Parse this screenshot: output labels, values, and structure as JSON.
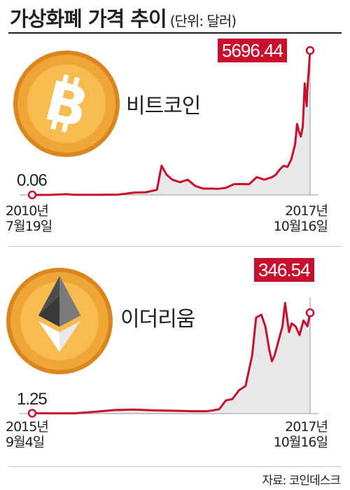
{
  "header": {
    "title": "가상화폐 가격 추이",
    "unit": "(단위: 달러)"
  },
  "source": "자료: 코인데스크",
  "colors": {
    "line": "#c8102e",
    "area": "#e8e8ea",
    "badge": "#c8102e",
    "coin_gold": "#e8962a",
    "coin_light": "#f6b94b"
  },
  "chart_data": [
    {
      "type": "area",
      "name": "비트코인",
      "icon": "bitcoin-icon",
      "start": {
        "value_label": "0.06",
        "date_year": "2010년",
        "date_md": "7월19일"
      },
      "end": {
        "value_label": "5696.44",
        "date_year": "2017년",
        "date_md": "10월16일"
      },
      "x": [
        2010.55,
        2011.0,
        2011.45,
        2011.55,
        2011.65,
        2011.9,
        2012.3,
        2012.8,
        2013.2,
        2013.5,
        2013.8,
        2013.92,
        2014.05,
        2014.2,
        2014.4,
        2014.6,
        2014.8,
        2015.0,
        2015.2,
        2015.4,
        2015.6,
        2015.8,
        2016.0,
        2016.2,
        2016.4,
        2016.6,
        2016.8,
        2016.9,
        2017.0,
        2017.1,
        2017.2,
        2017.3,
        2017.4,
        2017.45,
        2017.5,
        2017.55,
        2017.6,
        2017.65,
        2017.7,
        2017.72,
        2017.75,
        2017.79
      ],
      "y": [
        0.06,
        0.3,
        29,
        15,
        5,
        3,
        5,
        12,
        90,
        100,
        200,
        1150,
        800,
        600,
        500,
        600,
        350,
        250,
        250,
        240,
        280,
        420,
        430,
        420,
        700,
        600,
        700,
        800,
        1000,
        1150,
        1100,
        1400,
        2000,
        2800,
        2500,
        2300,
        2700,
        4400,
        3500,
        4200,
        4800,
        5696.44
      ],
      "ylim": [
        0,
        5696.44
      ]
    },
    {
      "type": "area",
      "name": "이더리움",
      "icon": "ethereum-icon",
      "start": {
        "value_label": "1.25",
        "date_year": "2015년",
        "date_md": "9월4일"
      },
      "end": {
        "value_label": "346.54",
        "date_year": "2017년",
        "date_md": "10월16일"
      },
      "x": [
        2015.68,
        2015.85,
        2016.0,
        2016.15,
        2016.3,
        2016.45,
        2016.6,
        2016.75,
        2016.9,
        2017.0,
        2017.05,
        2017.1,
        2017.15,
        2017.2,
        2017.25,
        2017.3,
        2017.35,
        2017.38,
        2017.42,
        2017.45,
        2017.48,
        2017.5,
        2017.52,
        2017.55,
        2017.58,
        2017.6,
        2017.63,
        2017.65,
        2017.68,
        2017.71,
        2017.74,
        2017.77,
        2017.79
      ],
      "y": [
        1.25,
        0.9,
        1.0,
        6,
        12,
        14,
        11,
        10,
        8,
        8,
        11,
        15,
        45,
        50,
        80,
        95,
        200,
        330,
        340,
        300,
        220,
        180,
        200,
        250,
        300,
        380,
        280,
        310,
        300,
        270,
        320,
        300,
        346.54
      ],
      "ylim": [
        0,
        400
      ]
    }
  ]
}
